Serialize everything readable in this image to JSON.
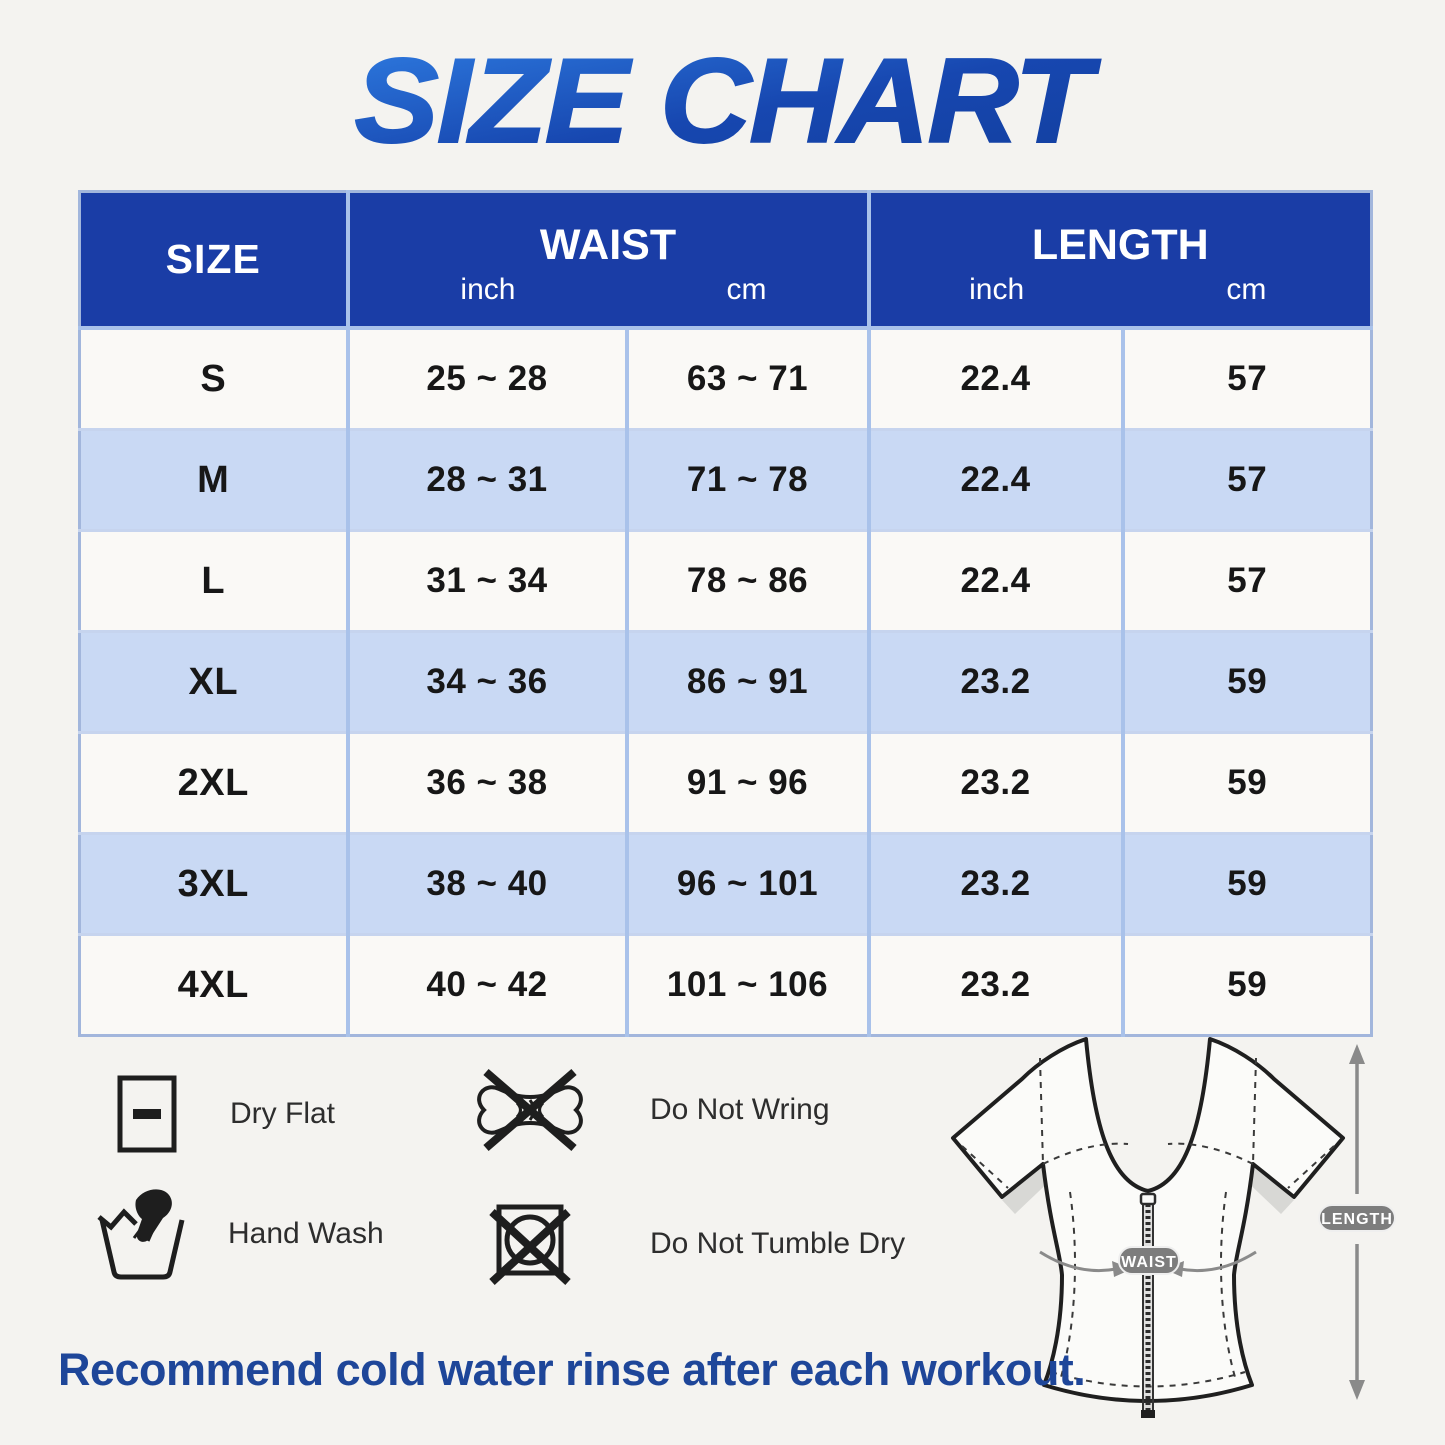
{
  "title": "SIZE CHART",
  "table": {
    "size_header": "SIZE",
    "waist_header": "WAIST",
    "length_header": "LENGTH",
    "units": {
      "waist": [
        "inch",
        "cm"
      ],
      "length": [
        "inch",
        "cm"
      ]
    }
  },
  "chart_data": {
    "type": "table",
    "title": "SIZE CHART",
    "columns": [
      "SIZE",
      "WAIST inch",
      "WAIST cm",
      "LENGTH inch",
      "LENGTH cm"
    ],
    "rows": [
      [
        "S",
        "25 ~ 28",
        "63 ~ 71",
        "22.4",
        "57"
      ],
      [
        "M",
        "28 ~ 31",
        "71 ~ 78",
        "22.4",
        "57"
      ],
      [
        "L",
        "31 ~ 34",
        "78 ~ 86",
        "22.4",
        "57"
      ],
      [
        "XL",
        "34 ~ 36",
        "86 ~ 91",
        "23.2",
        "59"
      ],
      [
        "2XL",
        "36 ~ 38",
        "91 ~ 96",
        "23.2",
        "59"
      ],
      [
        "3XL",
        "38 ~ 40",
        "96 ~ 101",
        "23.2",
        "59"
      ],
      [
        "4XL",
        "40 ~ 42",
        "101 ~ 106",
        "23.2",
        "59"
      ]
    ]
  },
  "care_instructions": [
    {
      "icon": "dry-flat-icon",
      "label": "Dry Flat"
    },
    {
      "icon": "do-not-wring-icon",
      "label": "Do Not Wring"
    },
    {
      "icon": "hand-wash-icon",
      "label": "Hand Wash"
    },
    {
      "icon": "do-not-tumble-dry-icon",
      "label": "Do Not Tumble Dry"
    }
  ],
  "diagram": {
    "waist_badge": "WAIST",
    "length_badge": "LENGTH"
  },
  "footer_note": "Recommend cold water rinse after each workout.",
  "colors": {
    "page_background": "#f4f3f0",
    "header_blue": "#1a3da6",
    "row_alt_blue": "#c9d9f4",
    "row_white": "#faf9f6",
    "border_blue": "#a2b6dc",
    "border_light": "#a9c2ea",
    "title_gradient_start": "#2f7de2",
    "title_gradient_mid": "#1747b0",
    "title_gradient_end": "#123f9f",
    "footer_blue": "#1e4699",
    "badge_gray": "#7d7d7d"
  }
}
